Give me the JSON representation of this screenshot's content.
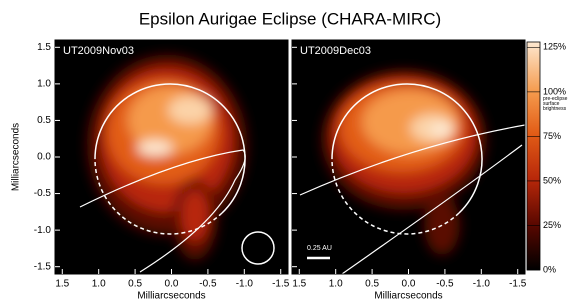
{
  "title": "Epsilon Aurigae Eclipse (CHARA-MIRC)",
  "chart_data": [
    {
      "type": "image",
      "label": "UT2009Nov03",
      "xlabel": "Milliarcseconds",
      "ylabel": "Milliarcseconds",
      "xlim": [
        1.6,
        -1.6
      ],
      "ylim": [
        -1.6,
        1.6
      ],
      "xticks": [
        1.5,
        {
          "value": 1,
          "label": "1.0"
        },
        0.5,
        {
          "value": 0,
          "label": "0.0"
        },
        -0.5,
        {
          "value": -1,
          "label": "-1.0"
        },
        -1.5
      ],
      "yticks": [
        -1.5,
        {
          "value": -1,
          "label": "-1.0"
        },
        -0.5,
        {
          "value": 0,
          "label": "0.0"
        },
        0.5,
        {
          "value": 1,
          "label": "1.0"
        },
        1.5
      ]
    },
    {
      "type": "image",
      "label": "UT2009Dec03",
      "xlabel": "Milliarcseconds",
      "scale_bar": "0.25 AU",
      "xlim": [
        1.6,
        -1.6
      ],
      "ylim": [
        -1.6,
        1.6
      ],
      "xticks": [
        1.5,
        {
          "value": 1,
          "label": "1.0"
        },
        0.5,
        {
          "value": 0,
          "label": "0.0"
        },
        -0.5,
        {
          "value": -1,
          "label": "-1.0"
        },
        -1.5
      ],
      "yticks": [
        -1.5,
        -1,
        -0.5,
        0,
        0.5,
        1,
        1.5
      ]
    }
  ],
  "colorbar": {
    "lim": [
      0,
      128
    ],
    "note": [
      "pre-eclipse",
      "surface",
      "brightness"
    ],
    "ticks": [
      {
        "value": 0,
        "label": "0%"
      },
      {
        "value": 25,
        "label": "25%"
      },
      {
        "value": 50,
        "label": "50%"
      },
      {
        "value": 75,
        "label": "75%"
      },
      {
        "value": 100,
        "label": "100%"
      },
      {
        "value": 125,
        "label": "125%"
      }
    ]
  }
}
